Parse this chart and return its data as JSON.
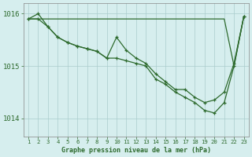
{
  "x": [
    1,
    2,
    3,
    4,
    5,
    6,
    7,
    8,
    9,
    10,
    11,
    12,
    13,
    14,
    15,
    16,
    17,
    18,
    19,
    20,
    21,
    22,
    23
  ],
  "series1_flat": [
    1015.9,
    1015.9,
    1015.9,
    1015.9,
    1015.9,
    1015.9,
    1015.9,
    1015.9,
    1015.9,
    1015.9,
    1015.9,
    1015.9,
    1015.9,
    1015.9,
    1015.9,
    1015.9,
    1015.9,
    1015.9,
    1015.9,
    1015.9,
    1015.9,
    1015.0,
    1015.95
  ],
  "series2": [
    1015.9,
    1016.0,
    1015.75,
    1015.55,
    1015.45,
    1015.38,
    1015.33,
    1015.28,
    1015.15,
    1015.55,
    1015.3,
    1015.15,
    1015.05,
    1014.85,
    1014.7,
    1014.55,
    1014.55,
    1014.4,
    1014.3,
    1014.35,
    1014.5,
    1015.05,
    1015.95
  ],
  "series3": [
    1015.9,
    1015.9,
    1015.75,
    1015.55,
    1015.45,
    1015.38,
    1015.33,
    1015.28,
    1015.15,
    1015.15,
    1015.1,
    1015.05,
    1015.0,
    1014.75,
    1014.65,
    1014.5,
    1014.4,
    1014.3,
    1014.15,
    1014.1,
    1014.3,
    1015.0,
    1015.95
  ],
  "bg_color": "#d6eeee",
  "grid_color": "#aacccc",
  "line_color": "#2d6a2d",
  "title": "Graphe pression niveau de la mer (hPa)",
  "xlabel_ticks": [
    1,
    2,
    3,
    4,
    5,
    6,
    7,
    8,
    9,
    10,
    11,
    12,
    13,
    14,
    15,
    16,
    17,
    18,
    19,
    20,
    21,
    22,
    23
  ],
  "yticks": [
    1014,
    1015,
    1016
  ],
  "ylim": [
    1013.65,
    1016.2
  ],
  "xlim": [
    0.5,
    23.5
  ]
}
